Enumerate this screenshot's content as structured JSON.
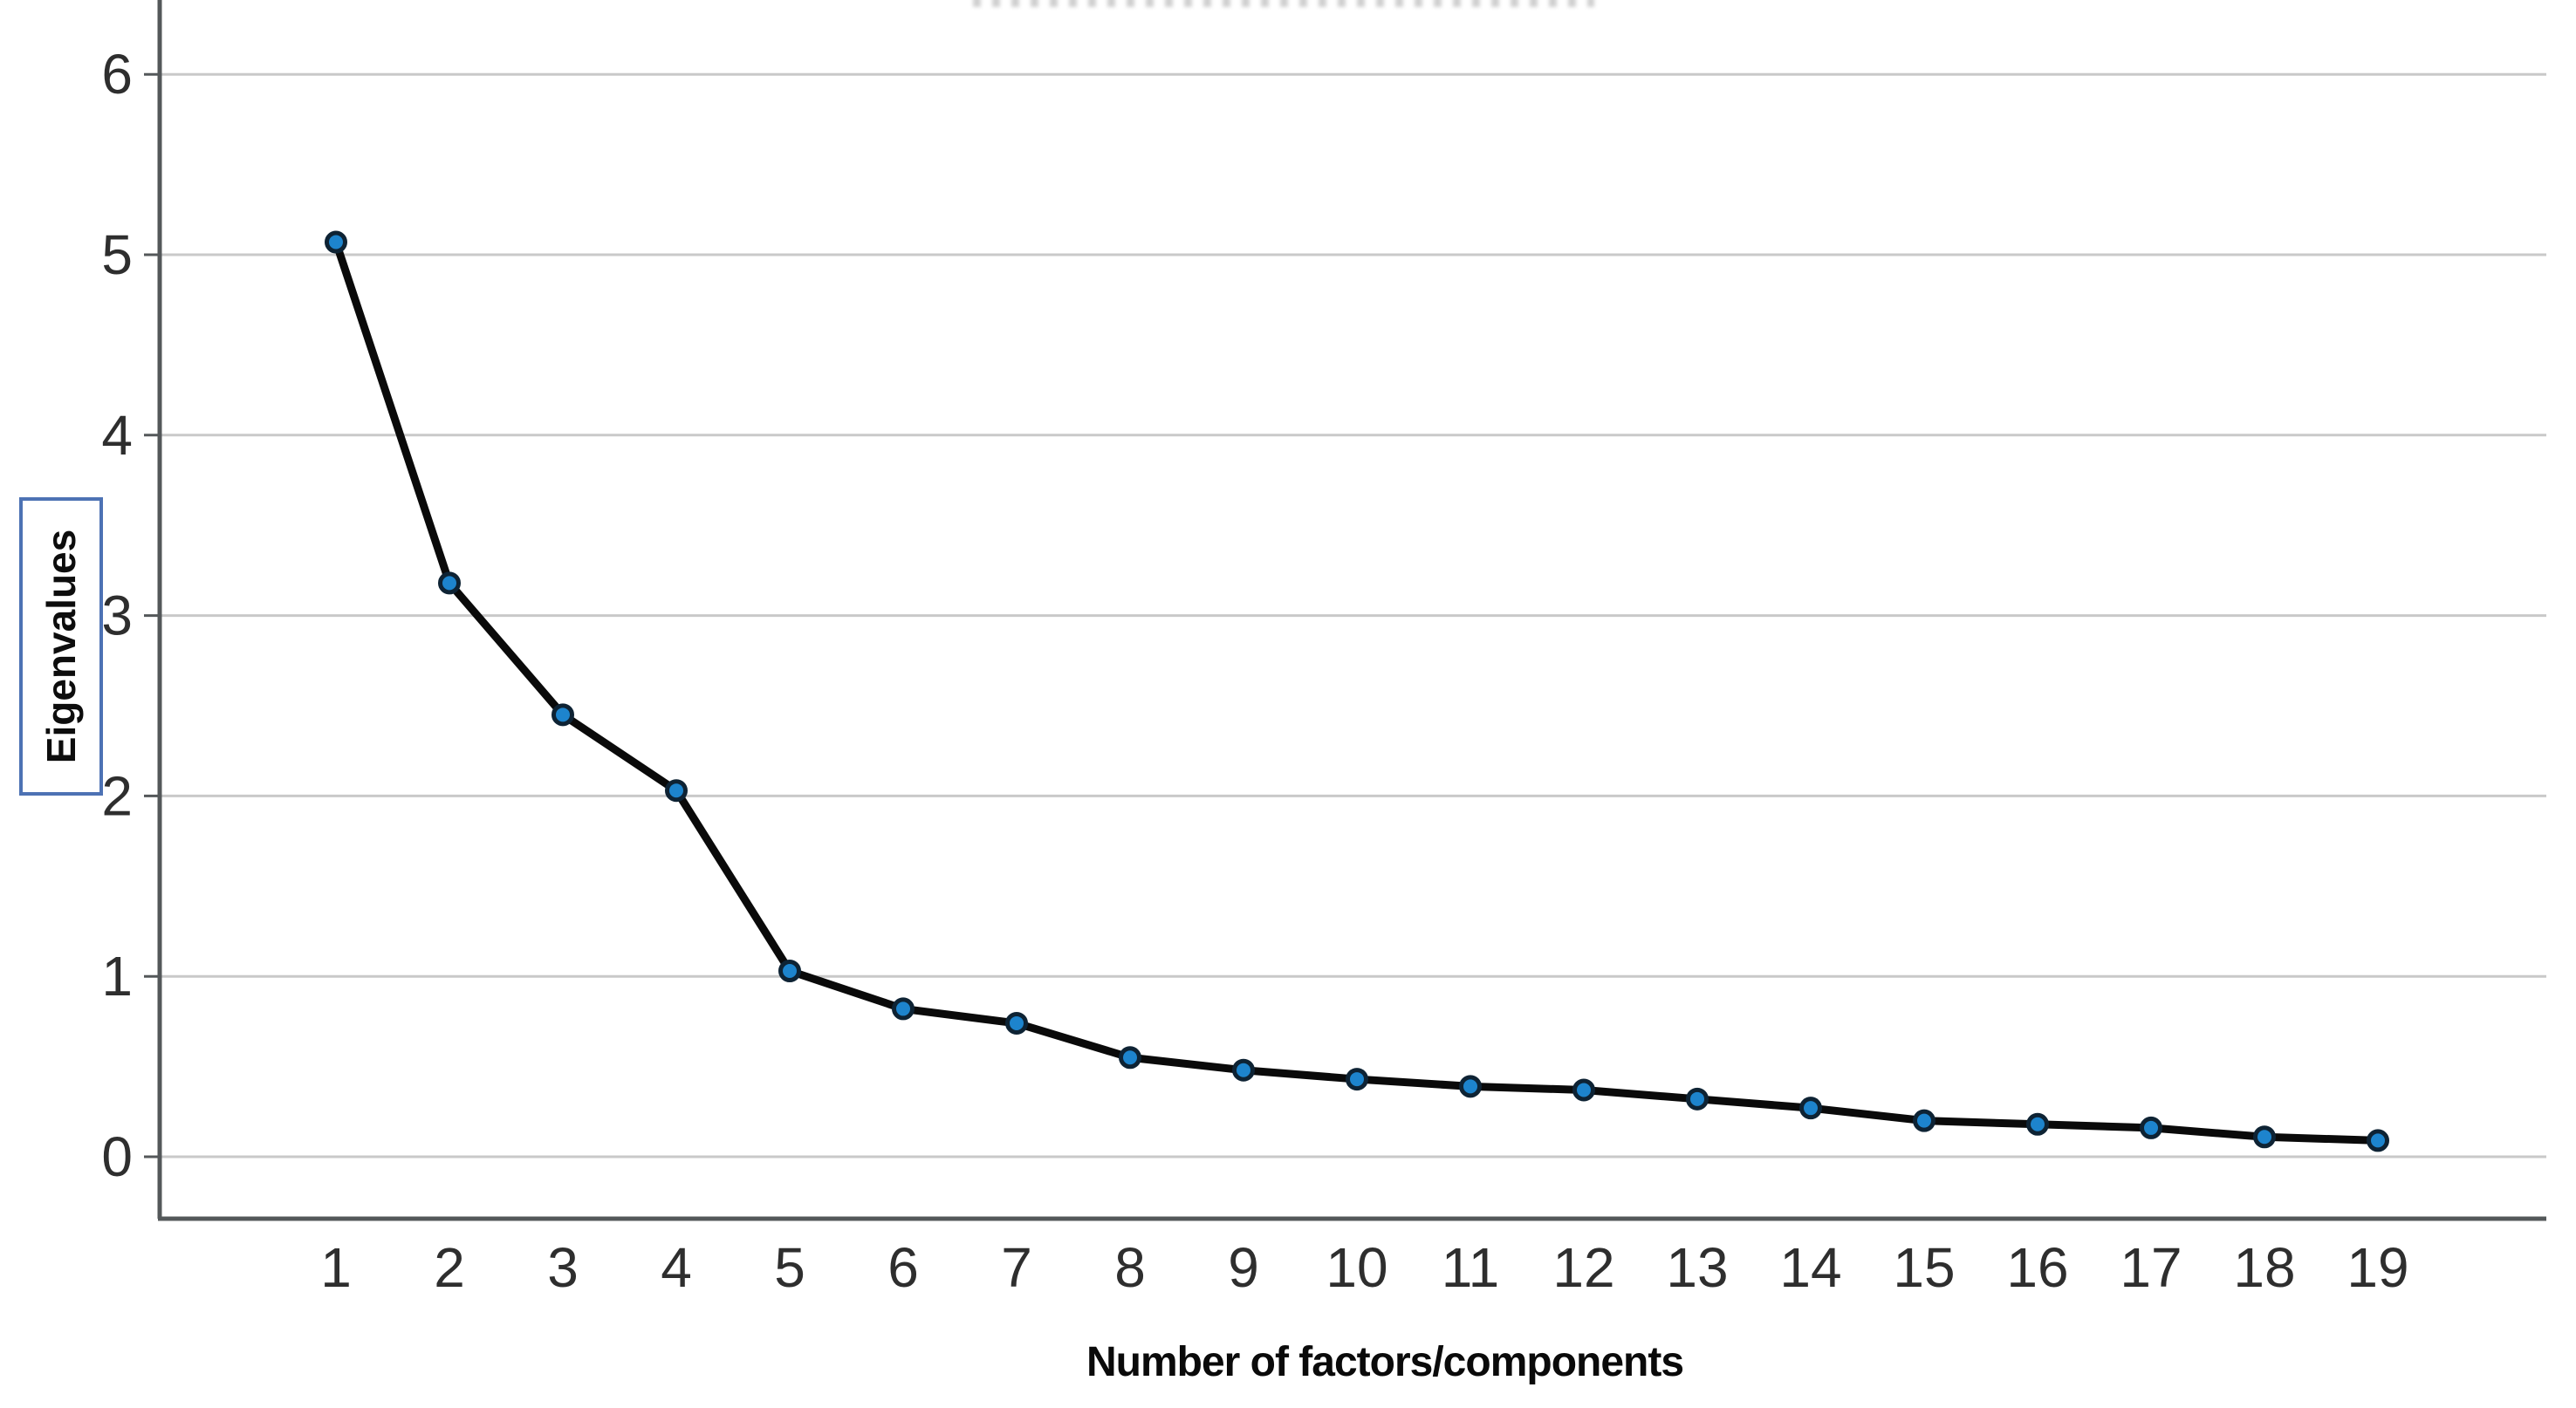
{
  "chart_data": {
    "type": "line",
    "title": "",
    "xlabel": "Number of factors/components",
    "ylabel": "Eigenvalues",
    "x": [
      1,
      2,
      3,
      4,
      5,
      6,
      7,
      8,
      9,
      10,
      11,
      12,
      13,
      14,
      15,
      16,
      17,
      18,
      19
    ],
    "values": [
      5.07,
      3.18,
      2.45,
      2.03,
      1.03,
      0.82,
      0.74,
      0.55,
      0.48,
      0.43,
      0.39,
      0.37,
      0.32,
      0.27,
      0.2,
      0.18,
      0.16,
      0.11,
      0.09
    ],
    "xticks": [
      "1",
      "2",
      "3",
      "4",
      "5",
      "6",
      "7",
      "8",
      "9",
      "10",
      "11",
      "12",
      "13",
      "14",
      "15",
      "16",
      "17",
      "18",
      "19"
    ],
    "yticks": [
      "0",
      "1",
      "2",
      "3",
      "4",
      "5",
      "6"
    ],
    "ylim": [
      -0.34,
      6.42
    ],
    "grid": "horizontal",
    "legend": "none",
    "colors": {
      "marker_fill": "#1d84cd",
      "marker_stroke": "#0e2334",
      "line": "#0a0a0a",
      "grid": "#c9c9c9",
      "axis": "#54585a",
      "tick_text": "#2e2e2e",
      "ylabel_box_border": "#4d72b4"
    }
  }
}
